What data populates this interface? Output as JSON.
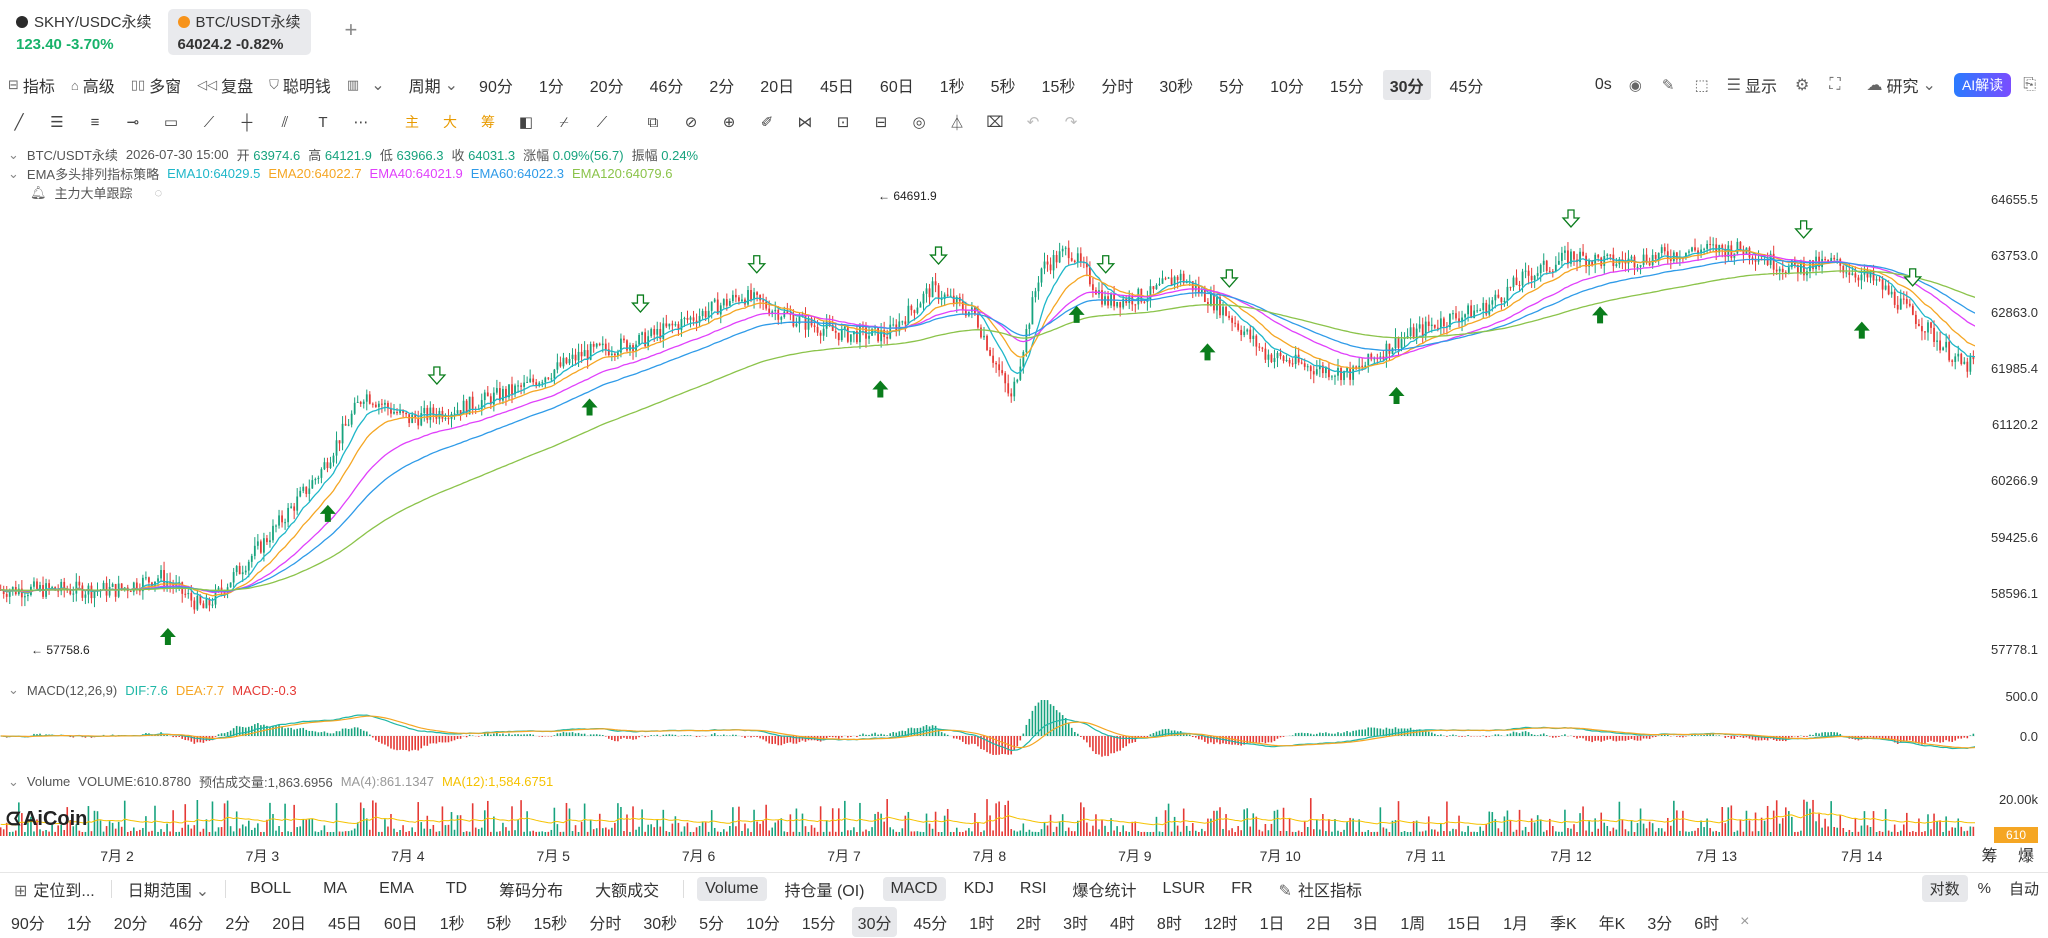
{
  "tabs": [
    {
      "name": "SKHY/USDC永续",
      "price": "123.40",
      "change": "-3.70%",
      "coin_color": "#2b2b2b",
      "price_color": "#17b26a",
      "active": false
    },
    {
      "name": "BTC/USDT永续",
      "price": "64024.2",
      "change": "-0.82%",
      "coin_color": "#f7931a",
      "price_color": "#333333",
      "active": true
    }
  ],
  "add_tab_icon": "plus-icon",
  "toolbar1": {
    "tools": [
      {
        "icon": "indicator-icon",
        "label": "指标"
      },
      {
        "icon": "advanced-icon",
        "label": "高级"
      },
      {
        "icon": "multi-window-icon",
        "label": "多窗"
      },
      {
        "icon": "replay-icon",
        "label": "复盘"
      },
      {
        "icon": "smart-money-icon",
        "label": "聪明钱"
      },
      {
        "icon": "candle-type-icon",
        "label": ""
      }
    ],
    "period_label": "周期",
    "intervals": [
      "90分",
      "1分",
      "20分",
      "46分",
      "2分",
      "20日",
      "45日",
      "60日",
      "1秒",
      "5秒",
      "15秒",
      "分时",
      "30秒",
      "5分",
      "10分",
      "15分",
      "30分",
      "45分"
    ],
    "selected_interval": "30分",
    "countdown": "0s",
    "display_label": "显示",
    "research_label": "研究",
    "ai_label": "AI解读"
  },
  "draw_tools": [
    "line-tool-icon",
    "hline-tool-icon",
    "channel-tool-icon",
    "ray-tool-icon",
    "rect-tool-icon",
    "trend-tool-icon",
    "vline-tool-icon",
    "parallel-tool-icon",
    "text-tool-icon",
    "more-icon",
    "主",
    "大",
    "筹",
    "pattern-icon",
    "fib-icon",
    "brush-icon",
    "copy-icon",
    "ruler-icon",
    "zoom-icon",
    "highlight-icon",
    "magnet-icon",
    "lock-icon",
    "save-icon",
    "eye-icon",
    "filter-icon",
    "trash-icon",
    "undo-icon",
    "redo-icon"
  ],
  "ohlc": {
    "symbol": "BTC/USDT永续",
    "time": "2026-07-30 15:00",
    "open_label": "开",
    "open": "63974.6",
    "high_label": "高",
    "high": "64121.9",
    "low_label": "低",
    "low": "63966.3",
    "close_label": "收",
    "close": "64031.3",
    "change_label": "涨幅",
    "change": "0.09%(56.7)",
    "amp_label": "振幅",
    "amp": "0.24%"
  },
  "ema": {
    "name": "EMA多头排列指标策略",
    "items": [
      {
        "text": "EMA10:64029.5",
        "color": "#1fb7c9"
      },
      {
        "text": "EMA20:64022.7",
        "color": "#f5a623"
      },
      {
        "text": "EMA40:64021.9",
        "color": "#e040fb"
      },
      {
        "text": "EMA60:64022.3",
        "color": "#2f9be8"
      },
      {
        "text": "EMA120:64079.6",
        "color": "#8bc34a"
      }
    ]
  },
  "tracker_label": "主力大单跟踪",
  "price_high_tag": "← 64691.9",
  "price_low_tag": "← 57758.6",
  "y_ticks": [
    "64655.5",
    "63753.0",
    "62863.0",
    "61985.4",
    "61120.2",
    "60266.9",
    "59425.6",
    "58596.1",
    "57778.1"
  ],
  "x_ticks": [
    "7月 2",
    "7月 3",
    "7月 4",
    "7月 5",
    "7月 6",
    "7月 7",
    "7月 8",
    "7月 9",
    "7月 10",
    "7月 11",
    "7月 12",
    "7月 13",
    "7月 14"
  ],
  "macd": {
    "name": "MACD(12,26,9)",
    "dif": "DIF:7.6",
    "dea": "DEA:7.7",
    "macd": "MACD:-0.3",
    "y_ticks": [
      "500.0",
      "0.0"
    ]
  },
  "volume": {
    "name": "Volume",
    "value": "VOLUME:610.8780",
    "est": "预估成交量:1,863.6956",
    "ma4": "MA(4):861.1347",
    "ma12": "MA(12):1,584.6751",
    "y_tick": "20.00k",
    "badge": "610"
  },
  "logo_text": "AiCoin",
  "chou_bao": "筹 爆",
  "bottom1": {
    "locate": "定位到...",
    "date_range": "日期范围",
    "indicators": [
      "BOLL",
      "MA",
      "EMA",
      "TD",
      "筹码分布",
      "大额成交"
    ],
    "sub_indicators": [
      "Volume",
      "持仓量 (OI)",
      "MACD",
      "KDJ",
      "RSI",
      "爆仓统计",
      "LSUR",
      "FR",
      "社区指标"
    ],
    "selected_subs": [
      "Volume",
      "MACD"
    ],
    "right": [
      "对数",
      "%",
      "自动"
    ]
  },
  "bottom2": {
    "intervals": [
      "90分",
      "1分",
      "20分",
      "46分",
      "2分",
      "20日",
      "45日",
      "60日",
      "1秒",
      "5秒",
      "15秒",
      "分时",
      "30秒",
      "5分",
      "10分",
      "15分",
      "30分",
      "45分",
      "1时",
      "2时",
      "3时",
      "4时",
      "8时",
      "12时",
      "1日",
      "2日",
      "3日",
      "1周",
      "15日",
      "1月",
      "季K",
      "年K",
      "3分",
      "6时"
    ],
    "selected": "30分",
    "close_icon": "close-icon"
  },
  "chart_data": {
    "type": "candlestick",
    "ylim": [
      57600,
      64800
    ],
    "x_categories": [
      "7月 2",
      "7月 3",
      "7月 4",
      "7月 5",
      "7月 6",
      "7月 7",
      "7月 8",
      "7月 9",
      "7月 10",
      "7月 11",
      "7月 12",
      "7月 13",
      "7月 14"
    ],
    "close_path": [
      [
        0,
        58700
      ],
      [
        0.3,
        58900
      ],
      [
        0.6,
        58400
      ],
      [
        1.0,
        59400
      ],
      [
        1.4,
        60500
      ],
      [
        1.7,
        61700
      ],
      [
        2.0,
        61300
      ],
      [
        2.4,
        61500
      ],
      [
        2.8,
        61800
      ],
      [
        3.2,
        62300
      ],
      [
        3.6,
        62500
      ],
      [
        4.0,
        62900
      ],
      [
        4.3,
        63200
      ],
      [
        4.7,
        62800
      ],
      [
        5.0,
        62600
      ],
      [
        5.3,
        62600
      ],
      [
        5.6,
        63300
      ],
      [
        5.9,
        62900
      ],
      [
        6.15,
        61600
      ],
      [
        6.35,
        63600
      ],
      [
        6.55,
        63900
      ],
      [
        6.8,
        63100
      ],
      [
        7.1,
        63200
      ],
      [
        7.3,
        63500
      ],
      [
        7.6,
        63000
      ],
      [
        7.9,
        62300
      ],
      [
        8.2,
        62100
      ],
      [
        8.5,
        62000
      ],
      [
        8.8,
        62500
      ],
      [
        9.1,
        62800
      ],
      [
        9.4,
        63000
      ],
      [
        9.7,
        63500
      ],
      [
        10.0,
        63800
      ],
      [
        10.3,
        63700
      ],
      [
        10.6,
        63800
      ],
      [
        10.9,
        63900
      ],
      [
        11.2,
        63900
      ],
      [
        11.5,
        63600
      ],
      [
        11.8,
        63700
      ],
      [
        12.1,
        63400
      ],
      [
        12.4,
        62800
      ],
      [
        12.7,
        62100
      ],
      [
        13.0,
        62400
      ],
      [
        13.3,
        62500
      ]
    ],
    "ema_series": [
      {
        "name": "EMA10",
        "lag": 0.12
      },
      {
        "name": "EMA20",
        "lag": 0.25
      },
      {
        "name": "EMA40",
        "lag": 0.45
      },
      {
        "name": "EMA60",
        "lag": 0.7
      },
      {
        "name": "EMA120",
        "lag": 1.3
      }
    ],
    "buy_signals": [
      0.35,
      1.45,
      3.25,
      5.25,
      6.6,
      7.5,
      8.8,
      10.2,
      12.0
    ],
    "sell_signals": [
      2.2,
      3.6,
      4.4,
      5.65,
      6.8,
      7.65,
      10.0,
      11.6,
      12.35
    ],
    "high": 64691.9,
    "low": 57758.6
  }
}
